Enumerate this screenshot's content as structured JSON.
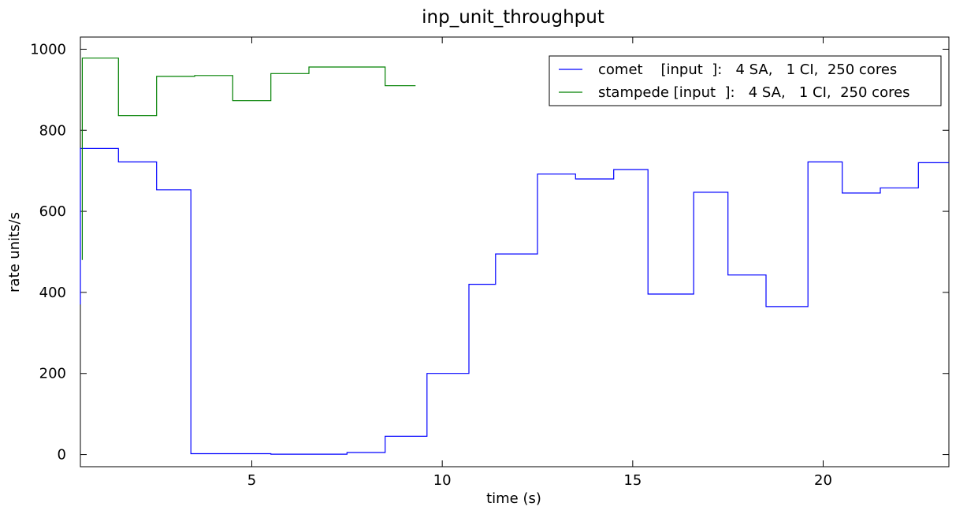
{
  "chart_data": {
    "type": "line",
    "step": true,
    "title": "inp_unit_throughput",
    "xlabel": "time (s)",
    "ylabel": "rate units/s",
    "xlim": [
      0.5,
      23.3
    ],
    "ylim": [
      -30,
      1030
    ],
    "xticks": [
      5,
      10,
      15,
      20
    ],
    "xtick_labels": [
      "5",
      "10",
      "15",
      "20"
    ],
    "yticks": [
      0,
      200,
      400,
      600,
      800,
      1000
    ],
    "ytick_labels": [
      "0",
      "200",
      "400",
      "600",
      "800",
      "1000"
    ],
    "legend_position": "top-right",
    "grid": false,
    "series": [
      {
        "name": "comet    [input  ]:   4 SA,   1 CI,  250 cores",
        "color": "#0000ff",
        "points": [
          [
            0.5,
            370
          ],
          [
            0.5,
            755
          ],
          [
            1.5,
            755
          ],
          [
            1.5,
            722
          ],
          [
            2.5,
            722
          ],
          [
            2.5,
            653
          ],
          [
            3.4,
            653
          ],
          [
            3.4,
            2
          ],
          [
            5.5,
            2
          ],
          [
            5.5,
            1
          ],
          [
            7.5,
            1
          ],
          [
            7.5,
            5
          ],
          [
            8.5,
            5
          ],
          [
            8.5,
            45
          ],
          [
            9.6,
            45
          ],
          [
            9.6,
            200
          ],
          [
            10.7,
            200
          ],
          [
            10.7,
            420
          ],
          [
            11.4,
            420
          ],
          [
            11.4,
            495
          ],
          [
            12.5,
            495
          ],
          [
            12.5,
            692
          ],
          [
            13.5,
            692
          ],
          [
            13.5,
            680
          ],
          [
            14.5,
            680
          ],
          [
            14.5,
            703
          ],
          [
            15.4,
            703
          ],
          [
            15.4,
            396
          ],
          [
            16.6,
            396
          ],
          [
            16.6,
            647
          ],
          [
            17.5,
            647
          ],
          [
            17.5,
            443
          ],
          [
            18.5,
            443
          ],
          [
            18.5,
            365
          ],
          [
            19.6,
            365
          ],
          [
            19.6,
            722
          ],
          [
            20.5,
            722
          ],
          [
            20.5,
            645
          ],
          [
            21.5,
            645
          ],
          [
            21.5,
            658
          ],
          [
            22.5,
            658
          ],
          [
            22.5,
            720
          ],
          [
            23.3,
            720
          ]
        ]
      },
      {
        "name": "stampede [input  ]:   4 SA,   1 CI,  250 cores",
        "color": "#008000",
        "points": [
          [
            0.55,
            480
          ],
          [
            0.55,
            978
          ],
          [
            1.5,
            978
          ],
          [
            1.5,
            836
          ],
          [
            2.5,
            836
          ],
          [
            2.5,
            933
          ],
          [
            3.5,
            933
          ],
          [
            3.5,
            935
          ],
          [
            4.5,
            935
          ],
          [
            4.5,
            873
          ],
          [
            5.5,
            873
          ],
          [
            5.5,
            940
          ],
          [
            6.5,
            940
          ],
          [
            6.5,
            956
          ],
          [
            8.5,
            956
          ],
          [
            8.5,
            910
          ],
          [
            9.3,
            910
          ]
        ]
      }
    ]
  }
}
